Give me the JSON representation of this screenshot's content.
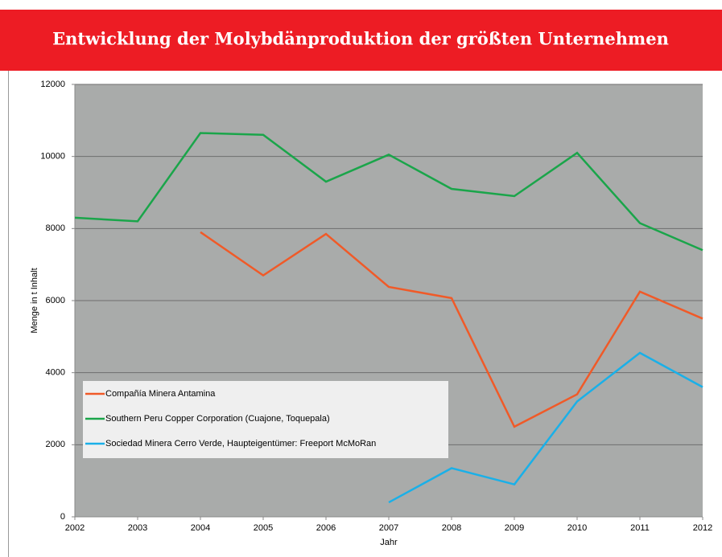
{
  "chart_data": {
    "type": "line",
    "title": "Entwicklung der Molybdänproduktion der größten Unternehmen",
    "x_label": "Jahr",
    "y_label": "Menge in t Inhalt",
    "x": [
      2002,
      2003,
      2004,
      2005,
      2006,
      2007,
      2008,
      2009,
      2010,
      2011,
      2012
    ],
    "xlim": [
      2002,
      2012
    ],
    "xticks": [
      2002,
      2003,
      2004,
      2005,
      2006,
      2007,
      2008,
      2009,
      2010,
      2011,
      2012
    ],
    "ylim": [
      0,
      12000
    ],
    "yticks": [
      0,
      2000,
      4000,
      6000,
      8000,
      10000,
      12000
    ],
    "grid": true,
    "legend": "lower left",
    "series": [
      {
        "name": "Compañía Minera Antamina",
        "color": "#f05a28",
        "values": [
          null,
          null,
          7900,
          6700,
          7850,
          6380,
          6070,
          2500,
          3400,
          6250,
          5500
        ]
      },
      {
        "name": "Southern Peru Copper Corporation (Cuajone, Toquepala)",
        "color": "#1aa54a",
        "values": [
          8300,
          8200,
          10650,
          10600,
          9300,
          10050,
          9100,
          8900,
          10100,
          8150,
          7400
        ]
      },
      {
        "name": "Sociedad Minera Cerro Verde, Haupteigentümer: Freeport McMoRan",
        "color": "#1ab0e8",
        "values": [
          null,
          null,
          null,
          null,
          null,
          400,
          1350,
          900,
          3200,
          4550,
          3600
        ]
      }
    ]
  }
}
